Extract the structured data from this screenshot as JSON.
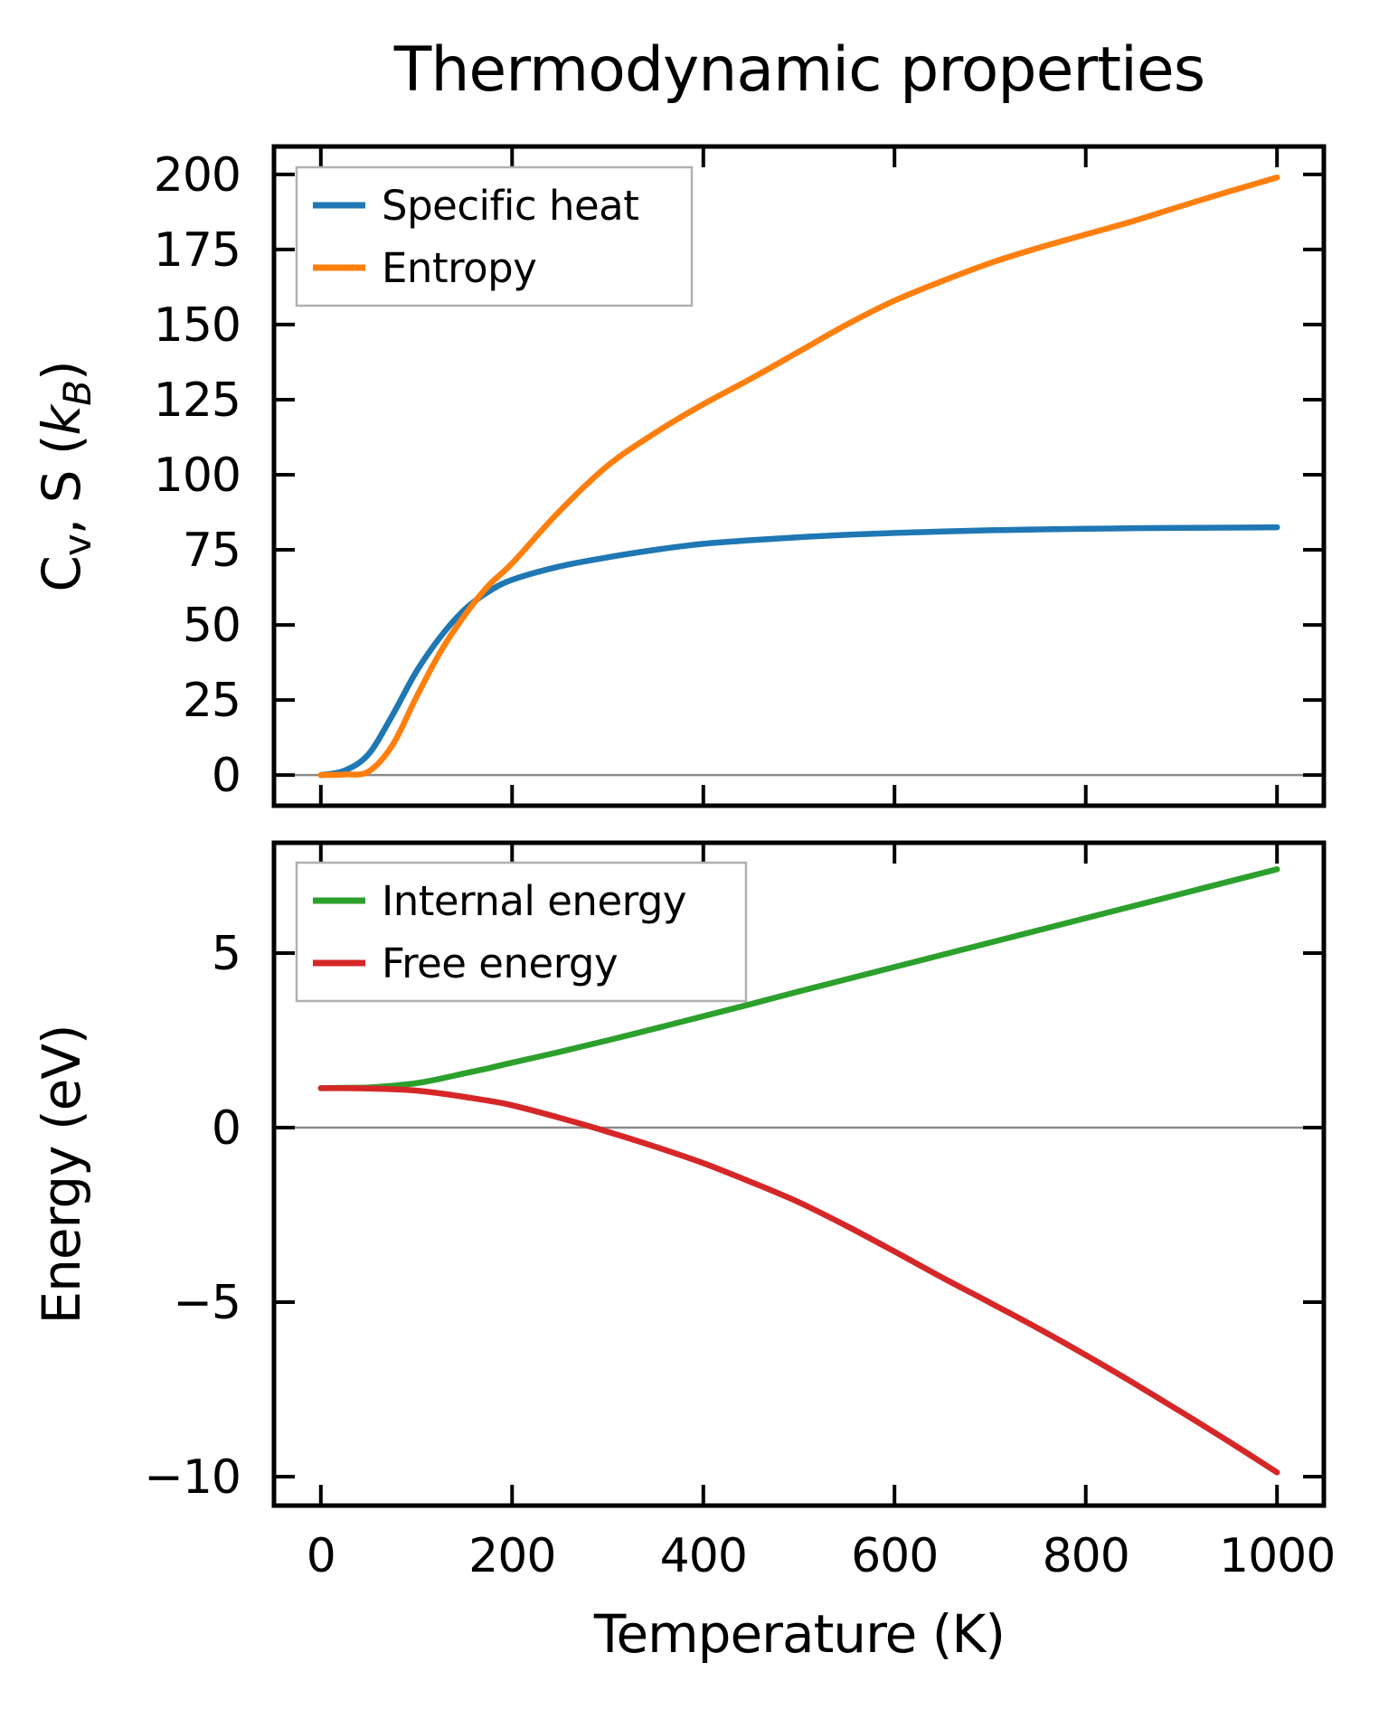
{
  "figure": {
    "title": "Thermodynamic properties",
    "background": "#ffffff",
    "text_color": "#000000"
  },
  "colors": {
    "spine": "#000000",
    "zero_line": "#8a8a8a",
    "legend_border": "#b0b0b0",
    "legend_background": "#ffffff"
  },
  "chart_data": [
    {
      "type": "line",
      "title": "Thermodynamic properties",
      "ylabel": "Cv, S (kB)",
      "ylabel_parts": [
        {
          "t": "C"
        },
        {
          "t": "v",
          "sub": true
        },
        {
          "t": ", S ("
        },
        {
          "t": "k",
          "italic": true
        },
        {
          "t": "B",
          "sub": true,
          "italic": true
        },
        {
          "t": ")"
        }
      ],
      "xlabel": "",
      "xlim": [
        -49,
        1049
      ],
      "ylim": [
        -10.2,
        209.3
      ],
      "xticks": [
        0,
        200,
        400,
        600,
        800,
        1000
      ],
      "xtick_labels": [
        "0",
        "200",
        "400",
        "600",
        "800",
        "1000"
      ],
      "xtick_labels_visible": false,
      "yticks": [
        0,
        25,
        50,
        75,
        100,
        125,
        150,
        175,
        200
      ],
      "ytick_labels": [
        "0",
        "25",
        "50",
        "75",
        "100",
        "125",
        "150",
        "175",
        "200"
      ],
      "grid": false,
      "zero_line": true,
      "legend": {
        "position": "upper left",
        "entries": [
          "Specific heat",
          "Entropy"
        ]
      },
      "x": [
        0,
        25,
        50,
        75,
        100,
        125,
        150,
        175,
        200,
        250,
        300,
        350,
        400,
        450,
        500,
        550,
        600,
        650,
        700,
        750,
        800,
        850,
        900,
        950,
        1000
      ],
      "series": [
        {
          "name": "Specific heat",
          "color": "#1f77b4",
          "values": [
            0,
            1.5,
            7,
            20,
            34.5,
            46,
            55,
            61,
            65,
            69.5,
            72.5,
            75,
            77,
            78.2,
            79.2,
            80,
            80.6,
            81.1,
            81.5,
            81.8,
            82,
            82.2,
            82.3,
            82.4,
            82.5
          ]
        },
        {
          "name": "Entropy",
          "color": "#ff7f0e",
          "values": [
            0,
            0.2,
            1.2,
            10,
            26,
            41,
            53,
            63,
            70.5,
            88,
            103,
            114,
            123.5,
            132,
            141,
            150,
            158,
            164.5,
            170.5,
            175.5,
            180,
            184.5,
            189.5,
            194.3,
            199
          ]
        }
      ]
    },
    {
      "type": "line",
      "title": "",
      "ylabel": "Energy (eV)",
      "xlabel": "Temperature (K)",
      "xlim": [
        -49,
        1049
      ],
      "ylim": [
        -10.83,
        8.16
      ],
      "xticks": [
        0,
        200,
        400,
        600,
        800,
        1000
      ],
      "xtick_labels": [
        "0",
        "200",
        "400",
        "600",
        "800",
        "1000"
      ],
      "xtick_labels_visible": true,
      "yticks": [
        5,
        0,
        -5,
        -10
      ],
      "ytick_labels": [
        "5",
        "0",
        "−5",
        "−10"
      ],
      "grid": false,
      "zero_line": true,
      "legend": {
        "position": "upper left",
        "entries": [
          "Internal energy",
          "Free energy"
        ]
      },
      "x": [
        0,
        25,
        50,
        75,
        100,
        125,
        150,
        175,
        200,
        250,
        300,
        350,
        400,
        450,
        500,
        550,
        600,
        650,
        700,
        750,
        800,
        850,
        900,
        950,
        1000
      ],
      "series": [
        {
          "name": "Internal energy",
          "color": "#2ca02c",
          "values": [
            1.13,
            1.14,
            1.15,
            1.2,
            1.27,
            1.4,
            1.55,
            1.7,
            1.86,
            2.17,
            2.5,
            2.84,
            3.19,
            3.54,
            3.9,
            4.25,
            4.6,
            4.95,
            5.3,
            5.65,
            6,
            6.35,
            6.7,
            7.05,
            7.4
          ]
        },
        {
          "name": "Free energy",
          "color": "#d62728",
          "values": [
            1.13,
            1.13,
            1.12,
            1.1,
            1.06,
            0.98,
            0.88,
            0.77,
            0.64,
            0.28,
            -0.12,
            -0.55,
            -1.02,
            -1.56,
            -2.14,
            -2.82,
            -3.55,
            -4.3,
            -5.02,
            -5.75,
            -6.52,
            -7.32,
            -8.15,
            -9.0,
            -9.88
          ]
        }
      ]
    }
  ]
}
